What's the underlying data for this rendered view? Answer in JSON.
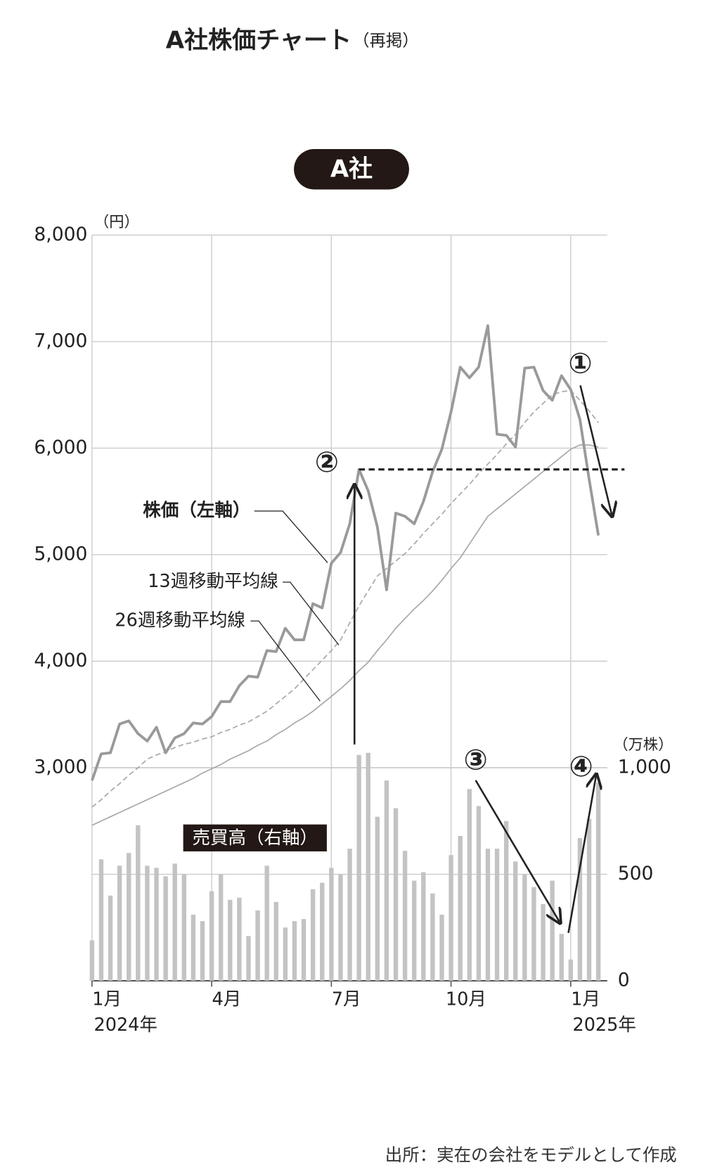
{
  "chart_data": {
    "type": "line",
    "title": "A社株価チャート",
    "title_note": "（再掲）",
    "subtitle": "A社",
    "y_unit": "（円）",
    "y2_unit": "（万株）",
    "source": "出所：実在の会社をモデルとして作成",
    "annotations": [
      "①",
      "②",
      "③",
      "④"
    ],
    "reference_line": 5800,
    "categories": [
      "1月",
      null,
      null,
      null,
      null,
      null,
      null,
      null,
      null,
      null,
      null,
      null,
      null,
      "4月",
      null,
      null,
      null,
      null,
      null,
      null,
      null,
      null,
      null,
      null,
      null,
      null,
      "7月",
      null,
      null,
      null,
      null,
      null,
      null,
      null,
      null,
      null,
      null,
      null,
      null,
      "10月",
      null,
      null,
      null,
      null,
      null,
      null,
      null,
      null,
      null,
      null,
      null,
      null,
      "1月",
      null,
      null,
      null
    ],
    "category_sublabels": [
      "2024年",
      null,
      null,
      null,
      null,
      null,
      null,
      null,
      null,
      null,
      null,
      null,
      null,
      null,
      null,
      null,
      null,
      null,
      null,
      null,
      null,
      null,
      null,
      null,
      null,
      null,
      null,
      null,
      null,
      null,
      null,
      null,
      null,
      null,
      null,
      null,
      null,
      null,
      null,
      null,
      null,
      null,
      null,
      null,
      null,
      null,
      null,
      null,
      null,
      null,
      null,
      null,
      "2025年",
      null,
      null,
      null
    ],
    "ylim": [
      1000,
      8000
    ],
    "yticks": [
      {
        "value": 3000,
        "label": "3,000"
      },
      {
        "value": 4000,
        "label": "4,000"
      },
      {
        "value": 5000,
        "label": "5,000"
      },
      {
        "value": 6000,
        "label": "6,000"
      },
      {
        "value": 7000,
        "label": "7,000"
      },
      {
        "value": 8000,
        "label": "8,000"
      }
    ],
    "y2lim": [
      0,
      3500
    ],
    "y2ticks": [
      0,
      500,
      {
        "value": 1000,
        "label": "1,000"
      }
    ],
    "grid": true,
    "series": [
      {
        "name": "株価（左軸）",
        "color": "#9a9a9a",
        "values": [
          2880,
          3130,
          3140,
          3410,
          3440,
          3320,
          3250,
          3380,
          3140,
          3280,
          3320,
          3420,
          3410,
          3480,
          3620,
          3620,
          3770,
          3860,
          3850,
          4100,
          4090,
          4310,
          4200,
          4200,
          4540,
          4500,
          4920,
          5020,
          5290,
          5800,
          5600,
          5260,
          4670,
          5390,
          5360,
          5290,
          5500,
          5780,
          5990,
          6340,
          6760,
          6660,
          6760,
          7150,
          6130,
          6120,
          6010,
          6750,
          6760,
          6540,
          6450,
          6680,
          6550,
          6270,
          5710,
          5180
        ]
      },
      {
        "name": "13週移動平均線",
        "color": "#a8a8a8",
        "dashed": true,
        "values": [
          2630,
          2700,
          2780,
          2850,
          2930,
          3000,
          3080,
          3120,
          3150,
          3190,
          3220,
          3240,
          3270,
          3290,
          3330,
          3360,
          3400,
          3430,
          3480,
          3530,
          3600,
          3670,
          3740,
          3830,
          3920,
          4010,
          4100,
          4200,
          4360,
          4520,
          4660,
          4800,
          4870,
          4940,
          5010,
          5100,
          5200,
          5290,
          5380,
          5480,
          5570,
          5660,
          5760,
          5850,
          5940,
          6040,
          6130,
          6240,
          6340,
          6420,
          6500,
          6530,
          6540,
          6450,
          6350,
          6240
        ]
      },
      {
        "name": "26週移動平均線",
        "color": "#a8a8a8",
        "values": [
          2460,
          2500,
          2540,
          2580,
          2620,
          2660,
          2700,
          2740,
          2780,
          2820,
          2860,
          2900,
          2950,
          2990,
          3030,
          3080,
          3120,
          3160,
          3210,
          3250,
          3310,
          3360,
          3420,
          3470,
          3530,
          3600,
          3670,
          3740,
          3820,
          3910,
          3990,
          4100,
          4200,
          4310,
          4400,
          4490,
          4570,
          4660,
          4760,
          4870,
          4970,
          5100,
          5230,
          5360,
          5430,
          5500,
          5570,
          5640,
          5710,
          5780,
          5850,
          5920,
          5990,
          6030,
          6030,
          6010
        ]
      },
      {
        "name": "売買高（右軸）",
        "type": "bar",
        "axis": "y2",
        "color": "#c3c3c3",
        "values": [
          190,
          570,
          400,
          540,
          600,
          730,
          540,
          530,
          490,
          550,
          500,
          310,
          280,
          420,
          500,
          380,
          390,
          210,
          330,
          540,
          370,
          250,
          280,
          290,
          430,
          460,
          530,
          500,
          620,
          1060,
          1070,
          770,
          940,
          810,
          610,
          470,
          510,
          410,
          310,
          590,
          680,
          900,
          820,
          620,
          620,
          750,
          560,
          500,
          440,
          360,
          470,
          220,
          100,
          670,
          760,
          930
        ]
      }
    ]
  }
}
